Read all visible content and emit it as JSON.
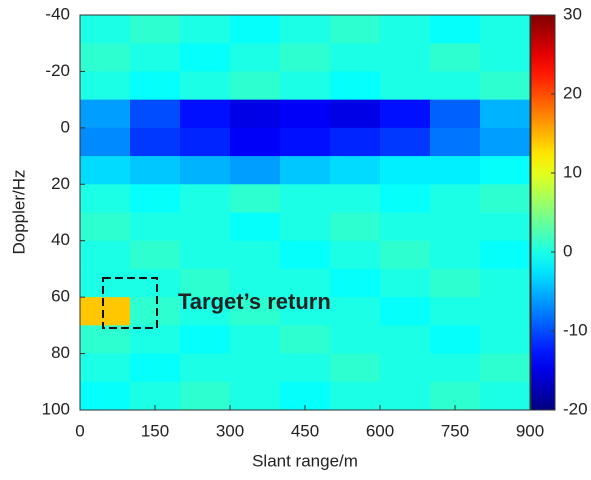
{
  "chart_data": {
    "type": "heatmap",
    "xlabel": "Slant range/m",
    "ylabel": "Doppler/Hz",
    "x_edges": [
      0,
      100,
      200,
      300,
      400,
      500,
      600,
      700,
      800,
      900
    ],
    "y_edges": [
      -40,
      -30,
      -20,
      -10,
      0,
      10,
      20,
      30,
      40,
      50,
      60,
      70,
      80,
      90,
      100
    ],
    "z": [
      [
        0,
        1,
        0,
        -1,
        0,
        1,
        0,
        -1,
        0
      ],
      [
        1,
        0,
        -1,
        0,
        1,
        0,
        0,
        1,
        0
      ],
      [
        0,
        -1,
        0,
        1,
        0,
        -1,
        0,
        0,
        1
      ],
      [
        -6,
        -10,
        -13,
        -15,
        -14,
        -15,
        -13,
        -9,
        -5
      ],
      [
        -7,
        -11,
        -12,
        -14,
        -13,
        -12,
        -11,
        -8,
        -6
      ],
      [
        -3,
        -4,
        -5,
        -6,
        -4,
        -3,
        -2,
        -2,
        -1
      ],
      [
        0,
        -1,
        0,
        1,
        0,
        0,
        -1,
        0,
        1
      ],
      [
        1,
        0,
        0,
        -1,
        0,
        1,
        0,
        0,
        0
      ],
      [
        0,
        1,
        0,
        0,
        -1,
        0,
        1,
        0,
        -1
      ],
      [
        0,
        0,
        1,
        0,
        0,
        -1,
        0,
        1,
        0
      ],
      [
        14,
        1,
        0,
        1,
        0,
        0,
        -1,
        0,
        0
      ],
      [
        1,
        0,
        -1,
        0,
        1,
        0,
        0,
        -1,
        0
      ],
      [
        0,
        -1,
        0,
        0,
        0,
        1,
        0,
        0,
        1
      ],
      [
        -1,
        0,
        1,
        0,
        -1,
        0,
        0,
        1,
        0
      ]
    ],
    "colormap": "jet",
    "xlim": [
      0,
      900
    ],
    "xticks": [
      0,
      150,
      300,
      450,
      600,
      750,
      900
    ],
    "ylim": [
      -40,
      100
    ],
    "yticks": [
      -40,
      -20,
      0,
      20,
      40,
      60,
      80,
      100
    ],
    "y_inverted": true,
    "zlim": [
      -20,
      30
    ],
    "zticks": [
      -20,
      -10,
      0,
      10,
      20,
      30
    ],
    "annotation": "Target’s return"
  }
}
